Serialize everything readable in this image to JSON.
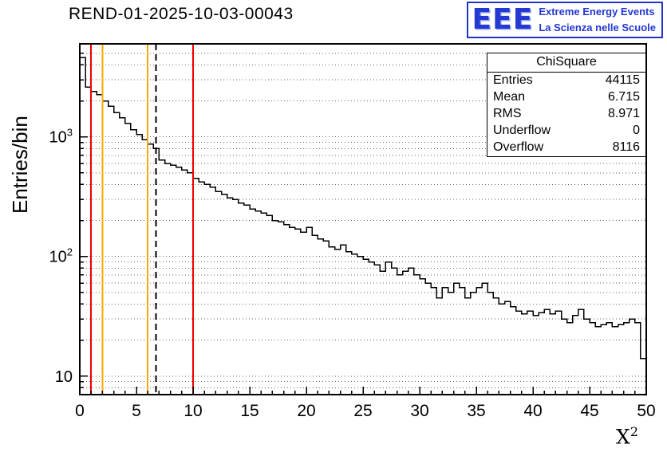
{
  "title": "REND-01-2025-10-03-00043",
  "logo": {
    "text": "EEE",
    "line1": "Extreme Energy Events",
    "line2": "La Scienza nelle Scuole",
    "color": "#2438d2"
  },
  "stats": {
    "header": "ChiSquare",
    "rows": [
      {
        "label": "Entries",
        "value": "44115"
      },
      {
        "label": "Mean",
        "value": "6.715"
      },
      {
        "label": "RMS",
        "value": "8.971"
      },
      {
        "label": "Underflow",
        "value": "0"
      },
      {
        "label": "Overflow",
        "value": "8116"
      }
    ]
  },
  "chart_data": {
    "type": "bar",
    "subtype": "step-histogram",
    "title": "REND-01-2025-10-03-00043",
    "x_label": {
      "base": "X",
      "exp": "2"
    },
    "y_label": "Entries/bin",
    "y_scale": "log",
    "x_range": [
      0,
      50
    ],
    "y_range": [
      7,
      6000
    ],
    "bin_width": 0.5,
    "x_ticks": [
      0,
      5,
      10,
      15,
      20,
      25,
      30,
      35,
      40,
      45,
      50
    ],
    "y_ticks": [
      {
        "v": 10,
        "base": "10",
        "exp": ""
      },
      {
        "v": 100,
        "base": "10",
        "exp": "2"
      },
      {
        "v": 1000,
        "base": "10",
        "exp": "3"
      }
    ],
    "grid": "horizontal-dotted-log-minor",
    "legend": "none",
    "bins": [
      4600,
      2600,
      2400,
      2250,
      2000,
      1800,
      1600,
      1450,
      1300,
      1150,
      1050,
      950,
      870,
      800,
      640,
      600,
      580,
      560,
      530,
      500,
      450,
      420,
      400,
      380,
      350,
      330,
      310,
      300,
      280,
      270,
      250,
      240,
      230,
      220,
      200,
      195,
      185,
      175,
      170,
      160,
      175,
      150,
      140,
      135,
      120,
      115,
      125,
      110,
      105,
      100,
      95,
      90,
      85,
      75,
      90,
      80,
      70,
      75,
      80,
      70,
      65,
      60,
      55,
      45,
      55,
      50,
      60,
      55,
      45,
      50,
      55,
      60,
      50,
      45,
      40,
      42,
      38,
      35,
      33,
      35,
      32,
      34,
      36,
      33,
      35,
      30,
      28,
      32,
      36,
      30,
      28,
      26,
      27,
      28,
      26,
      27,
      28,
      30,
      28,
      14
    ],
    "markers": [
      {
        "x": 1,
        "color": "#f20000",
        "width": 2,
        "dash": ""
      },
      {
        "x": 2,
        "color": "#ffaa00",
        "width": 2,
        "dash": ""
      },
      {
        "x": 6,
        "color": "#ffaa00",
        "width": 2,
        "dash": ""
      },
      {
        "x": 6.715,
        "color": "#000000",
        "width": 2,
        "dash": "8,5"
      },
      {
        "x": 10,
        "color": "#f20000",
        "width": 2,
        "dash": ""
      }
    ]
  }
}
